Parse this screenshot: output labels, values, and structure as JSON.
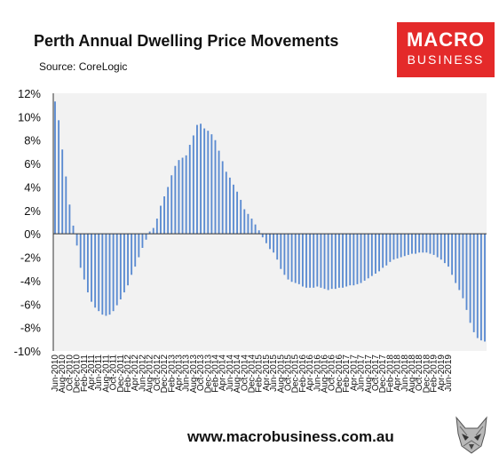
{
  "header": {
    "title": "Perth Annual Dwelling Price Movements",
    "source": "Source: CoreLogic"
  },
  "logo": {
    "line1": "MACRO",
    "line2": "BUSINESS",
    "bg": "#e42a2a"
  },
  "footer": {
    "url": "www.macrobusiness.com.au",
    "emblem": "wolf-icon"
  },
  "chart_data": {
    "type": "bar",
    "ylim": [
      -10,
      12
    ],
    "y_ticks": [
      "12%",
      "10%",
      "8%",
      "6%",
      "4%",
      "2%",
      "0%",
      "-2%",
      "-4%",
      "-6%",
      "-8%",
      "-10%"
    ],
    "x_tick_labels": [
      "Jun-2010",
      "Aug-2010",
      "Oct-2010",
      "Dec-2010",
      "Feb-2011",
      "Apr-2011",
      "Jun-2011",
      "Aug-2011",
      "Oct-2011",
      "Dec-2011",
      "Feb-2012",
      "Apr-2012",
      "Jun-2012",
      "Aug-2012",
      "Oct-2012",
      "Dec-2012",
      "Feb-2013",
      "Apr-2013",
      "Jun-2013",
      "Aug-2013",
      "Oct-2013",
      "Dec-2013",
      "Feb-2014",
      "Apr-2014",
      "Jun-2014",
      "Aug-2014",
      "Oct-2014",
      "Dec-2014",
      "Feb-2015",
      "Apr-2015",
      "Jun-2015",
      "Aug-2015",
      "Oct-2015",
      "Dec-2015",
      "Feb-2016",
      "Apr-2016",
      "Jun-2016",
      "Aug-2016",
      "Oct-2016",
      "Dec-2016",
      "Feb-2017",
      "Apr-2017",
      "Jun-2017",
      "Aug-2017",
      "Oct-2017",
      "Dec-2017",
      "Feb-2018",
      "Apr-2018",
      "Jun-2018",
      "Aug-2018",
      "Oct-2018",
      "Dec-2018",
      "Feb-2019",
      "Apr-2019",
      "Jun-2019"
    ],
    "first_month": "Jun-2010",
    "values": [
      11.3,
      9.7,
      7.2,
      4.9,
      2.5,
      0.7,
      -1.0,
      -2.9,
      -3.9,
      -5.0,
      -5.8,
      -6.3,
      -6.6,
      -6.9,
      -7.0,
      -6.9,
      -6.6,
      -6.1,
      -5.6,
      -5.0,
      -4.4,
      -3.5,
      -2.8,
      -2.0,
      -1.2,
      -0.5,
      0.2,
      0.5,
      1.3,
      2.4,
      3.2,
      4.0,
      5.0,
      5.8,
      6.3,
      6.5,
      6.7,
      7.6,
      8.4,
      9.3,
      9.4,
      9.0,
      8.8,
      8.5,
      8.0,
      7.1,
      6.2,
      5.3,
      4.8,
      4.2,
      3.6,
      2.9,
      2.1,
      1.7,
      1.3,
      0.8,
      0.3,
      -0.3,
      -0.8,
      -1.3,
      -1.6,
      -2.2,
      -3.0,
      -3.5,
      -3.9,
      -4.1,
      -4.2,
      -4.3,
      -4.5,
      -4.6,
      -4.6,
      -4.6,
      -4.5,
      -4.6,
      -4.7,
      -4.8,
      -4.7,
      -4.7,
      -4.6,
      -4.6,
      -4.5,
      -4.4,
      -4.4,
      -4.3,
      -4.2,
      -4.0,
      -3.8,
      -3.6,
      -3.4,
      -3.2,
      -2.9,
      -2.7,
      -2.4,
      -2.2,
      -2.1,
      -2.0,
      -1.9,
      -1.8,
      -1.7,
      -1.7,
      -1.6,
      -1.6,
      -1.6,
      -1.7,
      -1.8,
      -2.0,
      -2.2,
      -2.5,
      -2.8,
      -3.5,
      -4.2,
      -4.8,
      -5.5,
      -6.5,
      -7.6,
      -8.4,
      -8.9,
      -9.1,
      -9.2
    ],
    "bar_color": "#5b8bd1",
    "plot_bg": "#f2f2f2",
    "grid": false
  }
}
